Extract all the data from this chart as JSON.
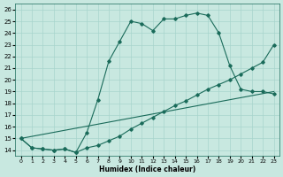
{
  "xlabel": "Humidex (Indice chaleur)",
  "bg_color": "#c8e8e0",
  "line_color": "#1a6b5a",
  "grid_color": "#a8d4cc",
  "xlim": [
    -0.5,
    23.5
  ],
  "ylim": [
    13.5,
    26.5
  ],
  "xticks": [
    0,
    1,
    2,
    3,
    4,
    5,
    6,
    7,
    8,
    9,
    10,
    11,
    12,
    13,
    14,
    15,
    16,
    17,
    18,
    19,
    20,
    21,
    22,
    23
  ],
  "yticks": [
    14,
    15,
    16,
    17,
    18,
    19,
    20,
    21,
    22,
    23,
    24,
    25,
    26
  ],
  "curve1_x": [
    0,
    1,
    2,
    3,
    4,
    5,
    6,
    7,
    8,
    9,
    10,
    11,
    12,
    13,
    14,
    15,
    16,
    17,
    18,
    19,
    20,
    21,
    22,
    23
  ],
  "curve1_y": [
    15.0,
    14.2,
    14.1,
    14.0,
    14.1,
    13.8,
    15.5,
    18.3,
    21.6,
    23.3,
    25.0,
    24.8,
    24.2,
    25.2,
    25.2,
    25.5,
    25.7,
    25.5,
    24.0,
    21.2,
    19.2,
    19.0,
    19.0,
    18.8
  ],
  "curve2_x": [
    0,
    1,
    2,
    3,
    4,
    5,
    6,
    7,
    8,
    9,
    10,
    11,
    12,
    13,
    14,
    15,
    16,
    17,
    18,
    19,
    20,
    21,
    22,
    23
  ],
  "curve2_y": [
    15.0,
    14.2,
    14.1,
    14.0,
    14.1,
    13.8,
    14.2,
    14.4,
    14.8,
    15.2,
    15.8,
    16.3,
    16.8,
    17.3,
    17.8,
    18.2,
    18.7,
    19.2,
    19.6,
    20.0,
    20.5,
    21.0,
    21.5,
    23.0
  ],
  "curve3_x": [
    0,
    23
  ],
  "curve3_y": [
    15.0,
    19.0
  ]
}
